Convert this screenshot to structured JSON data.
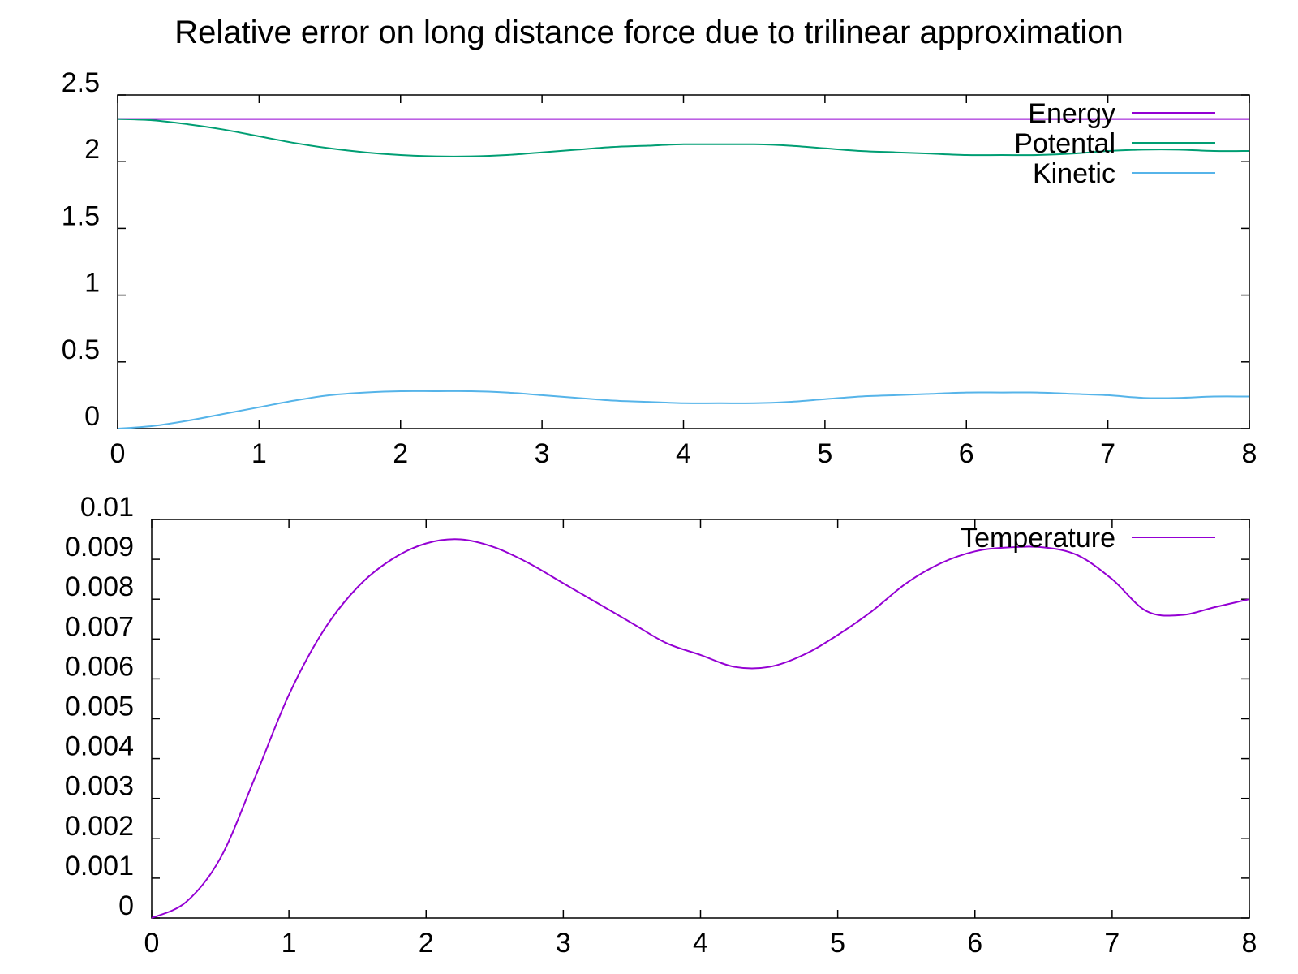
{
  "title": "Relative error on long distance force due to trilinear approximation",
  "chart_data": [
    {
      "type": "line",
      "title": "Relative error on long distance force due to trilinear approximation",
      "xlim": [
        0,
        8
      ],
      "ylim": [
        0,
        2.5
      ],
      "x_ticks": [
        "0",
        "1",
        "2",
        "3",
        "4",
        "5",
        "6",
        "7",
        "8"
      ],
      "y_ticks": [
        "0",
        "0.5",
        "1",
        "1.5",
        "2",
        "2.5"
      ],
      "grid": false,
      "legend_position": "top-right",
      "series": [
        {
          "name": "Energy",
          "color": "#9400d3",
          "x": [
            0,
            1,
            2,
            3,
            4,
            5,
            6,
            7,
            8
          ],
          "y": [
            2.32,
            2.32,
            2.32,
            2.32,
            2.32,
            2.32,
            2.32,
            2.32,
            2.32
          ]
        },
        {
          "name": "Potental",
          "color": "#009e73",
          "x": [
            0,
            0.25,
            0.5,
            0.75,
            1.0,
            1.25,
            1.5,
            1.75,
            2.0,
            2.25,
            2.5,
            2.75,
            3.0,
            3.25,
            3.5,
            3.75,
            4.0,
            4.25,
            4.5,
            4.75,
            5.0,
            5.25,
            5.5,
            5.75,
            6.0,
            6.25,
            6.5,
            6.75,
            7.0,
            7.25,
            7.5,
            7.75,
            8.0
          ],
          "y": [
            2.32,
            2.31,
            2.28,
            2.24,
            2.19,
            2.14,
            2.1,
            2.07,
            2.05,
            2.04,
            2.04,
            2.05,
            2.07,
            2.09,
            2.11,
            2.12,
            2.13,
            2.13,
            2.13,
            2.12,
            2.1,
            2.08,
            2.07,
            2.06,
            2.05,
            2.05,
            2.05,
            2.06,
            2.08,
            2.09,
            2.09,
            2.08,
            2.08
          ]
        },
        {
          "name": "Kinetic",
          "color": "#56b4e9",
          "x": [
            0,
            0.25,
            0.5,
            0.75,
            1.0,
            1.25,
            1.5,
            1.75,
            2.0,
            2.25,
            2.5,
            2.75,
            3.0,
            3.25,
            3.5,
            3.75,
            4.0,
            4.25,
            4.5,
            4.75,
            5.0,
            5.25,
            5.5,
            5.75,
            6.0,
            6.25,
            6.5,
            6.75,
            7.0,
            7.25,
            7.5,
            7.75,
            8.0
          ],
          "y": [
            0.0,
            0.02,
            0.06,
            0.11,
            0.16,
            0.21,
            0.25,
            0.27,
            0.28,
            0.28,
            0.28,
            0.27,
            0.25,
            0.23,
            0.21,
            0.2,
            0.19,
            0.19,
            0.19,
            0.2,
            0.22,
            0.24,
            0.25,
            0.26,
            0.27,
            0.27,
            0.27,
            0.26,
            0.25,
            0.23,
            0.23,
            0.24,
            0.24
          ]
        }
      ]
    },
    {
      "type": "line",
      "xlim": [
        0,
        8
      ],
      "ylim": [
        0,
        0.01
      ],
      "x_ticks": [
        "0",
        "1",
        "2",
        "3",
        "4",
        "5",
        "6",
        "7",
        "8"
      ],
      "y_ticks": [
        "0",
        "0.001",
        "0.002",
        "0.003",
        "0.004",
        "0.005",
        "0.006",
        "0.007",
        "0.008",
        "0.009",
        "0.01"
      ],
      "grid": false,
      "legend_position": "top-right",
      "series": [
        {
          "name": "Temperature",
          "color": "#9400d3",
          "x": [
            0,
            0.25,
            0.5,
            0.75,
            1.0,
            1.25,
            1.5,
            1.75,
            2.0,
            2.25,
            2.5,
            2.75,
            3.0,
            3.25,
            3.5,
            3.75,
            4.0,
            4.25,
            4.5,
            4.75,
            5.0,
            5.25,
            5.5,
            5.75,
            6.0,
            6.25,
            6.5,
            6.75,
            7.0,
            7.25,
            7.5,
            7.75,
            8.0
          ],
          "y": [
            0.0,
            0.0004,
            0.0015,
            0.0035,
            0.0056,
            0.0072,
            0.0083,
            0.009,
            0.0094,
            0.0095,
            0.0093,
            0.0089,
            0.0084,
            0.0079,
            0.0074,
            0.0069,
            0.0066,
            0.0063,
            0.0063,
            0.0066,
            0.0071,
            0.0077,
            0.0084,
            0.0089,
            0.0092,
            0.0093,
            0.0093,
            0.0091,
            0.0085,
            0.0077,
            0.0076,
            0.0078,
            0.008
          ]
        }
      ]
    }
  ]
}
